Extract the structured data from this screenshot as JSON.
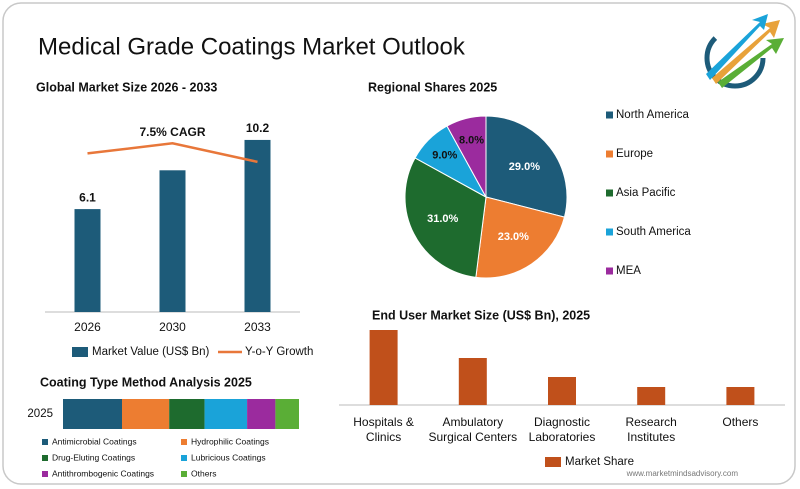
{
  "title": "Medical Grade Coatings Market Outlook",
  "footer": "www.marketmindsadvisory.com",
  "chart_data": [
    {
      "type": "bar",
      "title": "Global Market Size 2026 - 2033",
      "categories": [
        "2026",
        "2030",
        "2033"
      ],
      "series": [
        {
          "name": "Market Value (US$ Bn)",
          "color": "#1d5b79",
          "values": [
            6.1,
            8.4,
            10.2
          ],
          "value_labels": [
            "6.1",
            null,
            "10.2"
          ]
        },
        {
          "name": "Y-o-Y Growth",
          "type": "line",
          "color": "#e8773a",
          "values": [
            9.4,
            10.0,
            8.9
          ]
        }
      ],
      "annotations": [
        "7.5% CAGR"
      ],
      "ylim": [
        0,
        11.5
      ]
    },
    {
      "type": "pie",
      "title": "Regional Shares 2025",
      "categories": [
        "North America",
        "Europe",
        "Asia Pacific",
        "South America",
        "MEA"
      ],
      "values": [
        29,
        23,
        31,
        9,
        8
      ],
      "value_labels": [
        "29.0%",
        "23.0%",
        "31.0%",
        "9.0%",
        "8.0%"
      ],
      "colors": [
        "#1d5b79",
        "#ed7d31",
        "#1e6b2e",
        "#1aa3d9",
        "#9b2b9e"
      ],
      "legend": "right"
    },
    {
      "type": "bar",
      "title": "End User Market Size (US$ Bn), 2025",
      "categories": [
        "Hospitals & Clinics",
        "Ambulatory Surgical Centers",
        "Diagnostic Laboratories",
        "Research Institutes",
        "Others"
      ],
      "series": [
        {
          "name": "Market Share",
          "color": "#c0501b",
          "values": [
            7.5,
            4.7,
            2.8,
            1.8,
            1.8
          ]
        }
      ],
      "ylim": [
        0,
        8.5
      ]
    },
    {
      "type": "stacked_bar",
      "title": "Coating Type Method Analysis 2025",
      "categories": [
        "2025"
      ],
      "series": [
        {
          "name": "Antimicrobial Coatings",
          "color": "#1d5b79",
          "values": [
            25
          ]
        },
        {
          "name": "Hydrophilic Coatings",
          "color": "#ed7d31",
          "values": [
            20
          ]
        },
        {
          "name": "Drug-Eluting Coatings",
          "color": "#1e6b2e",
          "values": [
            15
          ]
        },
        {
          "name": "Lubricious Coatings",
          "color": "#1aa3d9",
          "values": [
            18
          ]
        },
        {
          "name": "Antithrombogenic Coatings",
          "color": "#9b2b9e",
          "values": [
            12
          ]
        },
        {
          "name": "Others",
          "color": "#5aae36",
          "values": [
            10
          ]
        }
      ],
      "xlim": [
        0,
        100
      ]
    }
  ]
}
